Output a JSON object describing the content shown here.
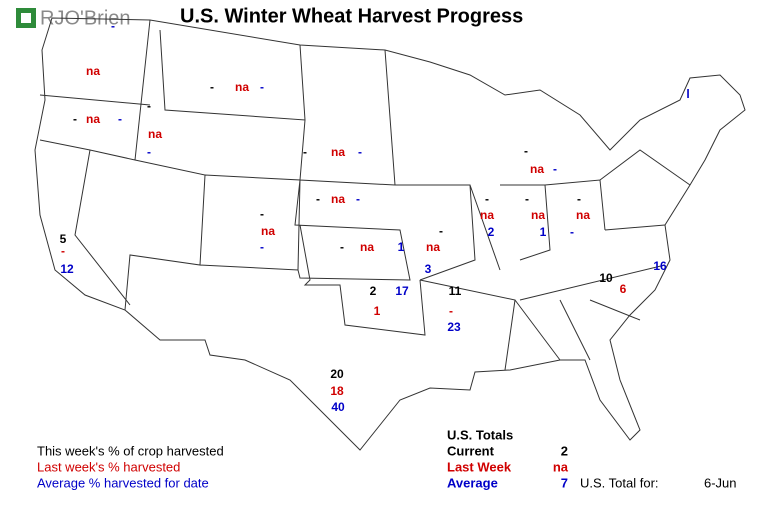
{
  "header": {
    "logo": "RJO'Brien",
    "title": "U.S. Winter Wheat Harvest Progress"
  },
  "colors": {
    "current": "#000000",
    "last_week": "#d00000",
    "average": "#0000c8"
  },
  "states": [
    {
      "last_week": "na",
      "average": "-"
    },
    {
      "current": "-",
      "last_week": "na",
      "average": "-"
    },
    {
      "current": "-",
      "last_week": "na",
      "average": "-"
    },
    {
      "current": "-",
      "last_week": "na",
      "average": "-"
    },
    {
      "current": "-",
      "last_week": "na",
      "average": "-"
    },
    {
      "current": "-",
      "last_week": "na",
      "average": "-"
    },
    {
      "current": "-",
      "last_week": "na",
      "average": "-"
    },
    {
      "current": "-",
      "last_week": "na",
      "average": 1
    },
    {
      "current": "-",
      "last_week": "na",
      "average": 3
    },
    {
      "current": "-",
      "last_week": "na",
      "average": 2
    },
    {
      "current": "-",
      "last_week": "na",
      "average": 1
    },
    {
      "current": "-",
      "last_week": "na",
      "average": "-"
    },
    {
      "current": "-",
      "last_week": "na",
      "average": "-"
    },
    {
      "average": "l"
    },
    {
      "current": 5,
      "last_week": "-",
      "average": 12
    },
    {
      "current": 2,
      "last_week": 1,
      "average": 17
    },
    {
      "current": 11,
      "last_week": "-",
      "average": 23
    },
    {
      "current": 10,
      "last_week": 6,
      "average": 16
    },
    {
      "current": 20,
      "last_week": 18,
      "average": 40
    }
  ],
  "legend": {
    "current": "This week's % of crop harvested",
    "last_week": "Last week's % harvested",
    "average": "Average % harvested for date"
  },
  "totals": {
    "title": "U.S. Totals",
    "current_label": "Current",
    "current": 2,
    "last_week_label": "Last Week",
    "last_week": "na",
    "average_label": "Average",
    "average": 7,
    "date_label": "U.S. Total for:",
    "date": "6-Jun"
  }
}
